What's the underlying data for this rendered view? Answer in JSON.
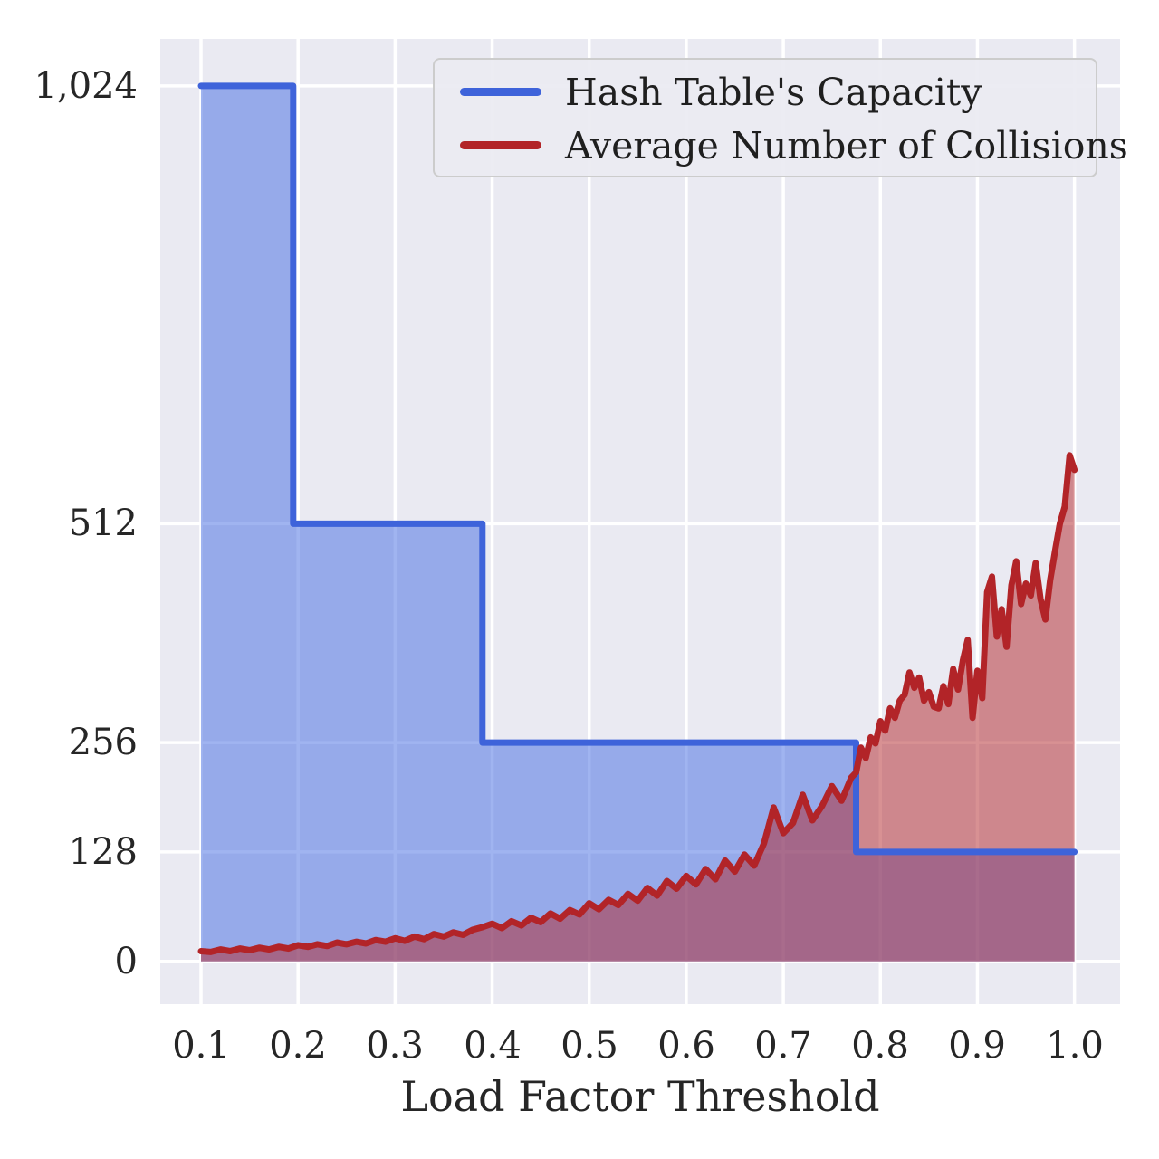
{
  "figure": {
    "background": "#ffffff",
    "axes_background": "#eaeaf2",
    "grid_color": "#ffffff"
  },
  "chart_data": {
    "type": "line",
    "title": "",
    "xlabel": "Load Factor Threshold",
    "ylabel": "",
    "grid": true,
    "xlim": [
      0.058,
      1.047
    ],
    "ylim": [
      -50,
      1079
    ],
    "x_ticks": [
      0.1,
      0.2,
      0.3,
      0.4,
      0.5,
      0.6,
      0.7,
      0.8,
      0.9,
      1.0
    ],
    "x_tick_labels": [
      "0.1",
      "0.2",
      "0.3",
      "0.4",
      "0.5",
      "0.6",
      "0.7",
      "0.8",
      "0.9",
      "1.0"
    ],
    "y_ticks": [
      0,
      128,
      256,
      512,
      1024
    ],
    "y_tick_labels": [
      "0",
      "128",
      "256",
      "512",
      "1,024"
    ],
    "legend": {
      "position": "upper right",
      "entries": [
        {
          "label": "Hash Table's Capacity",
          "color": "#3e63da"
        },
        {
          "label": "Average Number of Collisions",
          "color": "#b22428"
        }
      ]
    },
    "series": [
      {
        "name": "Hash Table's Capacity",
        "type": "step",
        "color": "#3e63da",
        "fill": "rgba(65,105,225,0.5)",
        "x": [
          0.1,
          0.195,
          0.39,
          0.775,
          1.0
        ],
        "y": [
          1024,
          512,
          256,
          128,
          128
        ]
      },
      {
        "name": "Average Number of Collisions",
        "type": "line",
        "color": "#b22428",
        "fill": "rgba(178,36,40,0.5)",
        "x": [
          0.1,
          0.11,
          0.12,
          0.13,
          0.14,
          0.15,
          0.16,
          0.17,
          0.18,
          0.19,
          0.2,
          0.21,
          0.22,
          0.23,
          0.24,
          0.25,
          0.26,
          0.27,
          0.28,
          0.29,
          0.3,
          0.31,
          0.32,
          0.33,
          0.34,
          0.35,
          0.36,
          0.37,
          0.38,
          0.39,
          0.4,
          0.41,
          0.42,
          0.43,
          0.44,
          0.45,
          0.46,
          0.47,
          0.48,
          0.49,
          0.5,
          0.51,
          0.52,
          0.53,
          0.54,
          0.55,
          0.56,
          0.57,
          0.58,
          0.59,
          0.6,
          0.61,
          0.62,
          0.63,
          0.64,
          0.65,
          0.66,
          0.67,
          0.68,
          0.69,
          0.7,
          0.71,
          0.72,
          0.73,
          0.74,
          0.75,
          0.76,
          0.77,
          0.775,
          0.78,
          0.785,
          0.79,
          0.795,
          0.8,
          0.805,
          0.81,
          0.815,
          0.82,
          0.825,
          0.83,
          0.835,
          0.84,
          0.845,
          0.85,
          0.855,
          0.86,
          0.865,
          0.87,
          0.875,
          0.88,
          0.885,
          0.89,
          0.895,
          0.9,
          0.905,
          0.91,
          0.915,
          0.92,
          0.925,
          0.93,
          0.935,
          0.94,
          0.945,
          0.95,
          0.955,
          0.96,
          0.965,
          0.97,
          0.975,
          0.98,
          0.985,
          0.99,
          0.995,
          1.0
        ],
        "y": [
          12,
          11,
          14,
          12,
          15,
          13,
          16,
          14,
          17,
          15,
          19,
          17,
          20,
          18,
          22,
          20,
          23,
          21,
          25,
          23,
          27,
          24,
          29,
          26,
          32,
          29,
          34,
          31,
          37,
          40,
          44,
          39,
          47,
          42,
          51,
          46,
          56,
          50,
          60,
          55,
          68,
          61,
          72,
          66,
          79,
          71,
          86,
          77,
          94,
          85,
          100,
          90,
          108,
          96,
          118,
          105,
          125,
          112,
          138,
          180,
          150,
          162,
          195,
          165,
          182,
          205,
          188,
          215,
          221,
          250,
          238,
          262,
          255,
          281,
          270,
          296,
          285,
          305,
          312,
          338,
          320,
          332,
          305,
          315,
          298,
          296,
          322,
          301,
          342,
          318,
          352,
          376,
          285,
          340,
          308,
          432,
          450,
          380,
          412,
          368,
          440,
          468,
          418,
          442,
          428,
          466,
          424,
          400,
          446,
          480,
          512,
          532,
          592,
          575
        ]
      }
    ]
  }
}
